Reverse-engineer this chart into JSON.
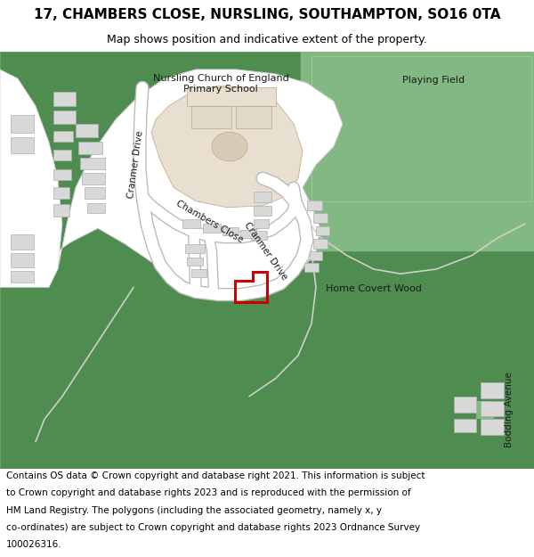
{
  "title_line1": "17, CHAMBERS CLOSE, NURSLING, SOUTHAMPTON, SO16 0TA",
  "title_line2": "Map shows position and indicative extent of the property.",
  "footer_lines": [
    "Contains OS data © Crown copyright and database right 2021. This information is subject",
    "to Crown copyright and database rights 2023 and is reproduced with the permission of",
    "HM Land Registry. The polygons (including the associated geometry, namely x, y",
    "co-ordinates) are subject to Crown copyright and database rights 2023 Ordnance Survey",
    "100026316."
  ],
  "bg_color": "#f0f0ee",
  "green_dark": "#4e8c50",
  "green_light": "#82b882",
  "white": "#ffffff",
  "building_fill": "#d8d8d8",
  "building_edge": "#b0b0b0",
  "school_fill": "#e8dfd0",
  "school_edge": "#c8b898",
  "red_plot": "#cc0000",
  "path_color": "#d0d0c8",
  "title_fontsize": 11,
  "subtitle_fontsize": 9,
  "footer_fontsize": 7.5
}
